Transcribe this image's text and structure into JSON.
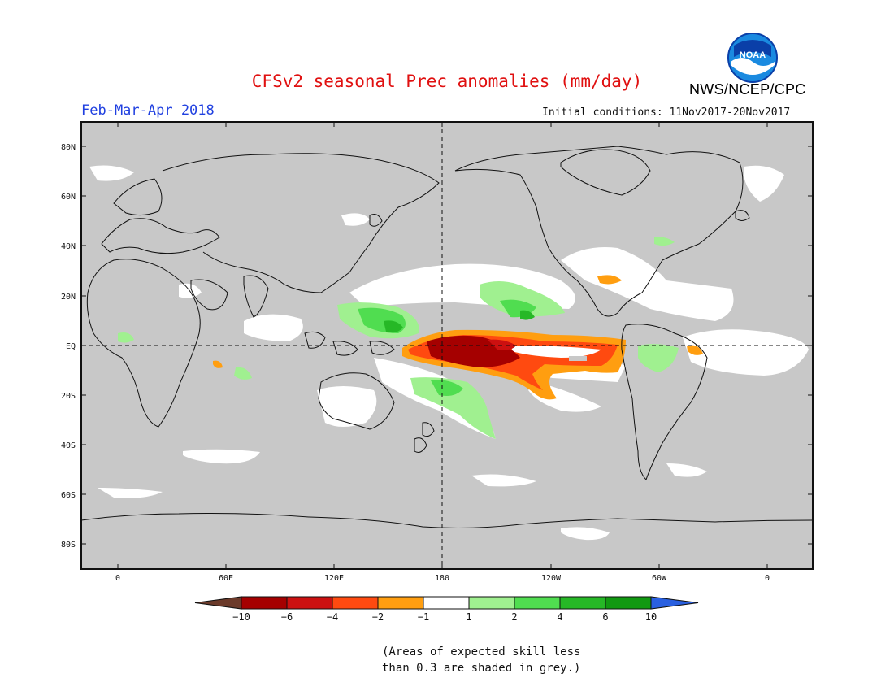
{
  "header": {
    "title": "CFSv2 seasonal Prec anomalies (mm/day)",
    "season": "Feb-Mar-Apr 2018",
    "initial_conditions": "Initial conditions: 11Nov2017-20Nov2017",
    "agency": "NWS/NCEP/CPC",
    "logo_text": "NOAA"
  },
  "axes": {
    "lat_labels": [
      "80N",
      "60N",
      "40N",
      "20N",
      "EQ",
      "20S",
      "40S",
      "60S",
      "80S"
    ],
    "lon_labels": [
      "0",
      "60E",
      "120E",
      "180",
      "120W",
      "60W",
      "0"
    ]
  },
  "colorbar": {
    "labels": [
      "-10",
      "-6",
      "-4",
      "-2",
      "-1",
      "1",
      "2",
      "4",
      "6",
      "10"
    ],
    "colors": [
      "#6b3a2a",
      "#a50000",
      "#cc1010",
      "#ff4a10",
      "#ff9e10",
      "#ffffff",
      "#a0f090",
      "#50dd50",
      "#26b826",
      "#119911",
      "#2a60e0"
    ]
  },
  "map_colors": {
    "no_skill_grey": "#c8c8c8",
    "ocean_white": "#ffffff"
  },
  "footnote": {
    "line1": "(Areas of expected skill less",
    "line2": "than 0.3 are shaded in grey.)"
  }
}
